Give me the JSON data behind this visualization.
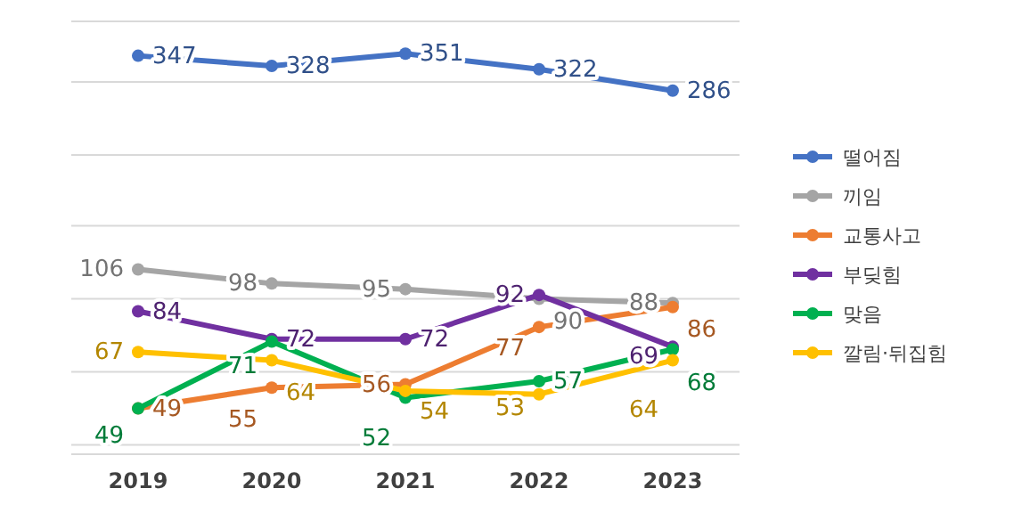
{
  "chart_data": {
    "type": "line",
    "categories": [
      "2019",
      "2020",
      "2021",
      "2022",
      "2023"
    ],
    "series": [
      {
        "name": "떨어짐",
        "color": "#4472c4",
        "values": [
          347,
          328,
          351,
          322,
          286
        ]
      },
      {
        "name": "끼임",
        "color": "#a5a5a5",
        "values": [
          106,
          98,
          95,
          90,
          88
        ]
      },
      {
        "name": "교통사고",
        "color": "#ed7d31",
        "values": [
          49,
          55,
          56,
          77,
          86
        ]
      },
      {
        "name": "부딪힘",
        "color": "#7030a0",
        "values": [
          84,
          72,
          72,
          92,
          69
        ]
      },
      {
        "name": "맞음",
        "color": "#00b050",
        "values": [
          49,
          71,
          52,
          57,
          68
        ]
      },
      {
        "name": "깔림·뒤집힘",
        "color": "#ffc000",
        "values": [
          67,
          64,
          54,
          53,
          64
        ]
      }
    ],
    "log": true,
    "ylim": [
      38,
      420
    ],
    "yticks": [
      {
        "value": 40,
        "label": null
      },
      {
        "value": 60,
        "label": null
      },
      {
        "value": 90,
        "label": null
      },
      {
        "value": 135,
        "label": null
      },
      {
        "value": 200,
        "label": null
      },
      {
        "value": 300,
        "label": null
      },
      {
        "value": 420,
        "label": null
      }
    ],
    "grid": "y",
    "legend": "right",
    "marker": "circle",
    "line_style": "solid",
    "data_labels": true,
    "tick_labels": "x"
  }
}
